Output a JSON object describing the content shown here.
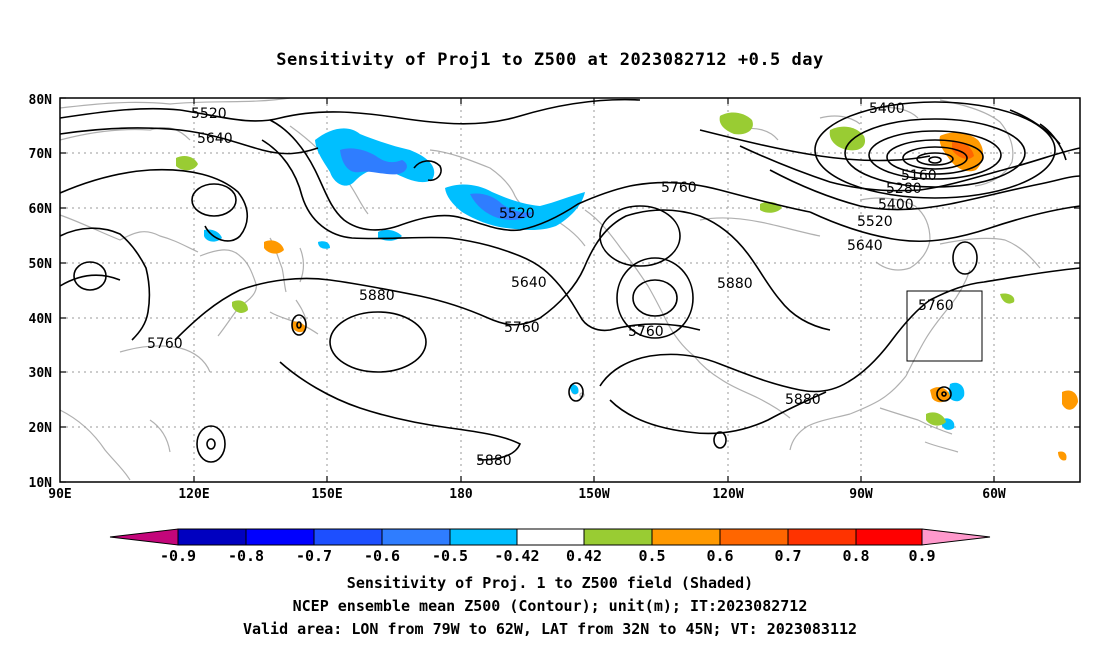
{
  "title": "Sensitivity of Proj1 to Z500 at 2023082712 +0.5 day",
  "map": {
    "lat_labels": [
      "80N",
      "70N",
      "60N",
      "50N",
      "40N",
      "30N",
      "20N",
      "10N"
    ],
    "lon_labels": [
      "90E",
      "120E",
      "150E",
      "180",
      "150W",
      "120W",
      "90W",
      "60W"
    ],
    "contour_labels": {
      "c5520a": "5520",
      "c5640a": "5640",
      "c5520b": "5520",
      "c5640b": "5640",
      "c5760a": "5760",
      "c5760b": "5760",
      "c5760c": "5760",
      "c5880a": "5880",
      "c5880b": "5880",
      "c5880c": "5880",
      "c5880d": "5880",
      "c5400a": "5400",
      "c5160": "5160",
      "c5280": "5280",
      "c5400b": "5400",
      "c5520c": "5520",
      "c5640c": "5640",
      "c5760d": "5760",
      "c5760e": "5760"
    },
    "valid_area": {
      "lon_min": "79W",
      "lon_max": "62W",
      "lat_min": "32N",
      "lat_max": "45N"
    }
  },
  "colorbar": {
    "labels": [
      "-0.9",
      "-0.8",
      "-0.7",
      "-0.6",
      "-0.5",
      "-0.42",
      "0.42",
      "0.5",
      "0.6",
      "0.7",
      "0.8",
      "0.9"
    ],
    "colors": [
      "#c3067a",
      "#0000c0",
      "#0000ff",
      "#1d4fff",
      "#2f7dff",
      "#00bfff",
      "#ffffff",
      "#99cc33",
      "#ff9900",
      "#ff6600",
      "#ff3300",
      "#ff0000",
      "#ff99cc"
    ]
  },
  "captions": {
    "line1": "Sensitivity of Proj. 1 to Z500 field (Shaded)",
    "line2": "NCEP ensemble mean Z500 (Contour); unit(m); IT:2023082712",
    "line3": "Valid area: LON from 79W to 62W, LAT from 32N to 45N; VT: 2023083112"
  }
}
